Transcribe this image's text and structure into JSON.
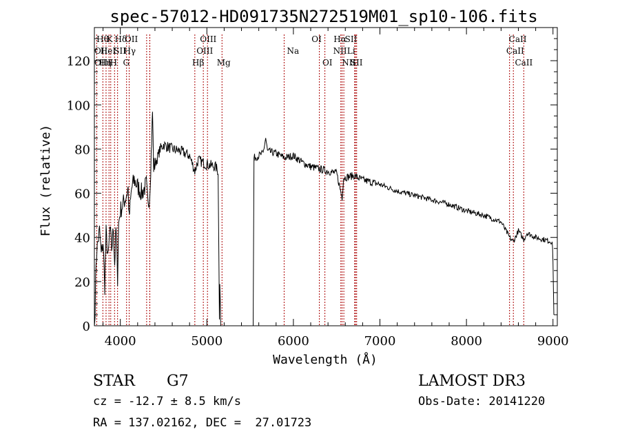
{
  "chart_data": {
    "type": "line",
    "title": "spec-57012-HD091735N272519M01_sp10-106.fits",
    "xlabel": "Wavelength (Å)",
    "ylabel": "Flux (relative)",
    "xlim": [
      3700,
      9050
    ],
    "ylim": [
      0,
      135
    ],
    "xticks": [
      4000,
      5000,
      6000,
      7000,
      8000,
      9000
    ],
    "xtick_labels": [
      "4000",
      "5000",
      "6000",
      "7000",
      "8000",
      "9000"
    ],
    "yticks": [
      0,
      20,
      40,
      60,
      80,
      100,
      120
    ],
    "ytick_labels": [
      "0",
      "20",
      "40",
      "60",
      "80",
      "100",
      "120"
    ],
    "line_color": "#000000",
    "marker_color": "#aa0000",
    "grid": false,
    "spectrum_anchors": [
      [
        3700,
        0
      ],
      [
        3708,
        8
      ],
      [
        3720,
        30
      ],
      [
        3740,
        38
      ],
      [
        3760,
        43
      ],
      [
        3780,
        32
      ],
      [
        3800,
        38
      ],
      [
        3820,
        18
      ],
      [
        3835,
        42
      ],
      [
        3860,
        30
      ],
      [
        3880,
        44
      ],
      [
        3900,
        35
      ],
      [
        3920,
        44
      ],
      [
        3935,
        28
      ],
      [
        3950,
        44
      ],
      [
        3968,
        22
      ],
      [
        3980,
        46
      ],
      [
        4000,
        52
      ],
      [
        4030,
        55
      ],
      [
        4060,
        58
      ],
      [
        4090,
        62
      ],
      [
        4101,
        48
      ],
      [
        4130,
        62
      ],
      [
        4160,
        66
      ],
      [
        4200,
        63
      ],
      [
        4250,
        60
      ],
      [
        4300,
        64
      ],
      [
        4320,
        54
      ],
      [
        4340,
        60
      ],
      [
        4362,
        84
      ],
      [
        4372,
        97
      ],
      [
        4385,
        72
      ],
      [
        4420,
        75
      ],
      [
        4460,
        80
      ],
      [
        4500,
        82
      ],
      [
        4600,
        80
      ],
      [
        4700,
        79
      ],
      [
        4800,
        77
      ],
      [
        4861,
        70
      ],
      [
        4900,
        75
      ],
      [
        5000,
        73
      ],
      [
        5100,
        72
      ],
      [
        5130,
        70
      ],
      [
        5145,
        5
      ],
      [
        5150,
        20
      ],
      [
        5160,
        0
      ],
      [
        5535,
        0
      ],
      [
        5545,
        76
      ],
      [
        5600,
        77
      ],
      [
        5650,
        78
      ],
      [
        5680,
        85
      ],
      [
        5700,
        79
      ],
      [
        5800,
        78
      ],
      [
        5900,
        76
      ],
      [
        6000,
        77
      ],
      [
        6100,
        74
      ],
      [
        6200,
        72
      ],
      [
        6300,
        71
      ],
      [
        6400,
        70
      ],
      [
        6500,
        69
      ],
      [
        6563,
        58
      ],
      [
        6580,
        67
      ],
      [
        6700,
        68
      ],
      [
        6800,
        66
      ],
      [
        7000,
        64
      ],
      [
        7200,
        61
      ],
      [
        7400,
        59
      ],
      [
        7600,
        57
      ],
      [
        7800,
        55
      ],
      [
        8000,
        52
      ],
      [
        8200,
        50
      ],
      [
        8400,
        47
      ],
      [
        8498,
        40
      ],
      [
        8542,
        38
      ],
      [
        8600,
        43
      ],
      [
        8662,
        39
      ],
      [
        8700,
        42
      ],
      [
        8800,
        40
      ],
      [
        8900,
        39
      ],
      [
        8990,
        38
      ],
      [
        9000,
        30
      ],
      [
        9010,
        5
      ]
    ],
    "lines": [
      {
        "label": "Hθ",
        "x": 3798,
        "row": 0,
        "label_x": 3725
      },
      {
        "label": "K",
        "x": 3933,
        "row": 0,
        "label_x": 3840
      },
      {
        "label": "Hδ",
        "x": 4102,
        "row": 0,
        "label_x": 3935
      },
      {
        "label": "OII",
        "x": 4341,
        "row": 0,
        "label_x": 4050
      },
      {
        "label": "OIII",
        "x": 5007,
        "row": 0,
        "label_x": 4920
      },
      {
        "label": "OI",
        "x": 6300,
        "row": 0,
        "label_x": 6210
      },
      {
        "label": "Hα",
        "x": 6563,
        "row": 0,
        "label_x": 6465
      },
      {
        "label": "SII",
        "x": 6717,
        "row": 0,
        "label_x": 6595
      },
      {
        "label": "CaII",
        "x": 8542,
        "row": 0,
        "label_x": 8490
      },
      {
        "label": "OII",
        "x": 3727,
        "row": 1,
        "label_x": 3700
      },
      {
        "label": "HeI",
        "x": 3889,
        "row": 1,
        "label_x": 3770
      },
      {
        "label": "SII",
        "x": 4072,
        "row": 1,
        "label_x": 3925
      },
      {
        "label": "Hγ",
        "x": 4340,
        "row": 1,
        "label_x": 4038
      },
      {
        "label": "OIII",
        "x": 4959,
        "row": 1,
        "label_x": 4880
      },
      {
        "label": "Na",
        "x": 5893,
        "row": 1,
        "label_x": 5925
      },
      {
        "label": "NII",
        "x": 6548,
        "row": 1,
        "label_x": 6460
      },
      {
        "label": "Li",
        "x": 6708,
        "row": 1,
        "label_x": 6620
      },
      {
        "label": "CaII",
        "x": 8498,
        "row": 1,
        "label_x": 8460
      },
      {
        "label": "OIII",
        "x": 3869,
        "row": 2,
        "label_x": 3700
      },
      {
        "label": "Hη",
        "x": 3835,
        "row": 2,
        "label_x": 3755
      },
      {
        "label": "H",
        "x": 3968,
        "row": 2,
        "label_x": 3880
      },
      {
        "label": "G",
        "x": 4304,
        "row": 2,
        "label_x": 4030
      },
      {
        "label": "Hβ",
        "x": 4861,
        "row": 2,
        "label_x": 4830
      },
      {
        "label": "Mg",
        "x": 5175,
        "row": 2,
        "label_x": 5115
      },
      {
        "label": "OI",
        "x": 6364,
        "row": 2,
        "label_x": 6335
      },
      {
        "label": "NII",
        "x": 6583,
        "row": 2,
        "label_x": 6560
      },
      {
        "label": "SII",
        "x": 6731,
        "row": 2,
        "label_x": 6660
      },
      {
        "label": "CaII",
        "x": 8662,
        "row": 2,
        "label_x": 8560
      }
    ]
  },
  "info": {
    "object_class": "STAR",
    "subclass": "G7",
    "survey": "LAMOST DR3",
    "cz": "cz = -12.7 ± 8.5 km/s",
    "obs_date": "Obs-Date: 20141220",
    "coords": "RA = 137.02162, DEC =  27.01723"
  }
}
